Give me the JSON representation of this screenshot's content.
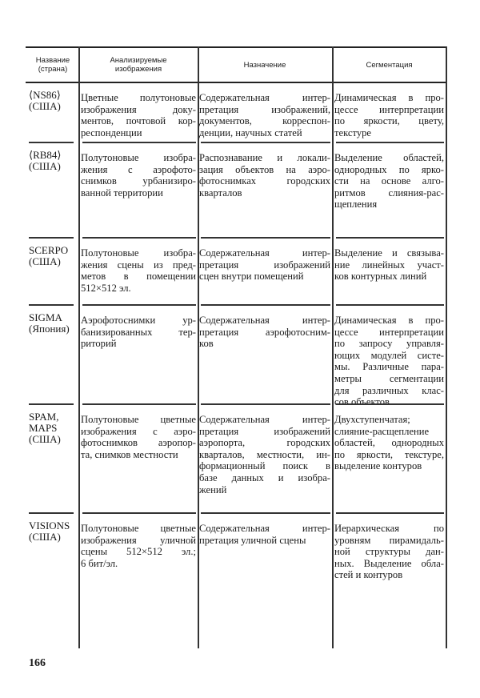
{
  "table": {
    "headers": [
      [
        "Название",
        "(страна)"
      ],
      [
        "Анализируемые",
        "изображения"
      ],
      [
        "Назначение"
      ],
      [
        "Сегментация"
      ]
    ],
    "rows": [
      {
        "name": [
          "⟨NS86⟩",
          "(США)"
        ],
        "images": [
          "Цветные полутоновые",
          "изображения доку-",
          "ментов, почтовой кор-",
          "респонденции"
        ],
        "purpose": [
          "Содержательная интер-",
          "претация изображений,",
          "документов, корреспон-",
          "денции, научных статей"
        ],
        "segmentation": [
          "Динамическая в про-",
          "цессе интерпретации",
          "по яркости, цвету,",
          "текстуре"
        ]
      },
      {
        "name": [
          "⟨RB84⟩",
          "(США)"
        ],
        "images": [
          "Полутоновые изобра-",
          "жения с аэрофото-",
          "снимков урбанизиро-",
          "ванной территории"
        ],
        "purpose": [
          "Распознавание и локали-",
          "зация объектов на аэро-",
          "фотоснимках городских",
          "кварталов"
        ],
        "segmentation": [
          "Выделение областей,",
          "однородных по ярко-",
          "сти на основе алго-",
          "ритмов слияния-рас-",
          "щепления"
        ]
      },
      {
        "name": [
          "SCERPO",
          "(США)"
        ],
        "images": [
          "Полутоновые изобра-",
          "жения сцены из пред-",
          "метов в помещении",
          "512×512 эл."
        ],
        "purpose": [
          "Содержательная интер-",
          "претация изображений",
          "сцен внутри помещений"
        ],
        "segmentation": [
          "Выделение и связыва-",
          "ние линейных участ-",
          "ков контурных линий"
        ]
      },
      {
        "name": [
          "SIGMA",
          "(Япония)"
        ],
        "images": [
          "Аэрофотоснимки ур-",
          "банизированных тер-",
          "риторий"
        ],
        "purpose": [
          "Содержательная интер-",
          "претация аэрофотосним-",
          "ков"
        ],
        "segmentation": [
          "Динамическая в про-",
          "цессе интерпретации",
          "по запросу управля-",
          "ющих модулей систе-",
          "мы. Различные пара-",
          "метры сегментации",
          "для различных клас-",
          "сов объектов"
        ]
      },
      {
        "name": [
          "SPAM,",
          "MAPS",
          "(США)"
        ],
        "images": [
          "Полутоновые цветные",
          "изображения с аэро-",
          "фотоснимков аэропор-",
          "та, снимков местности"
        ],
        "purpose": [
          "Содержательная интер-",
          "претация изображений",
          "аэропорта, городских",
          "кварталов, местности, ин-",
          "формационный поиск в",
          "базе данных и изобра-",
          "жений"
        ],
        "segmentation": [
          "Двухступенчатая;",
          "слияние-расщепление",
          "областей, однородных",
          "по яркости, текстуре,",
          "выделение контуров"
        ]
      },
      {
        "name": [
          "VISIONS",
          "(США)"
        ],
        "images": [
          "Полутоновые цветные",
          "изображения уличной",
          "сцены 512×512 эл.;",
          "6 бит/эл."
        ],
        "purpose": [
          "Содержательная интер-",
          "претация уличной сцены"
        ],
        "segmentation": [
          "Иерархическая по",
          "уровням пирамидаль-",
          "ной структуры дан-",
          "ных. Выделение обла-",
          "стей и контуров"
        ]
      }
    ]
  },
  "page_number": "166"
}
